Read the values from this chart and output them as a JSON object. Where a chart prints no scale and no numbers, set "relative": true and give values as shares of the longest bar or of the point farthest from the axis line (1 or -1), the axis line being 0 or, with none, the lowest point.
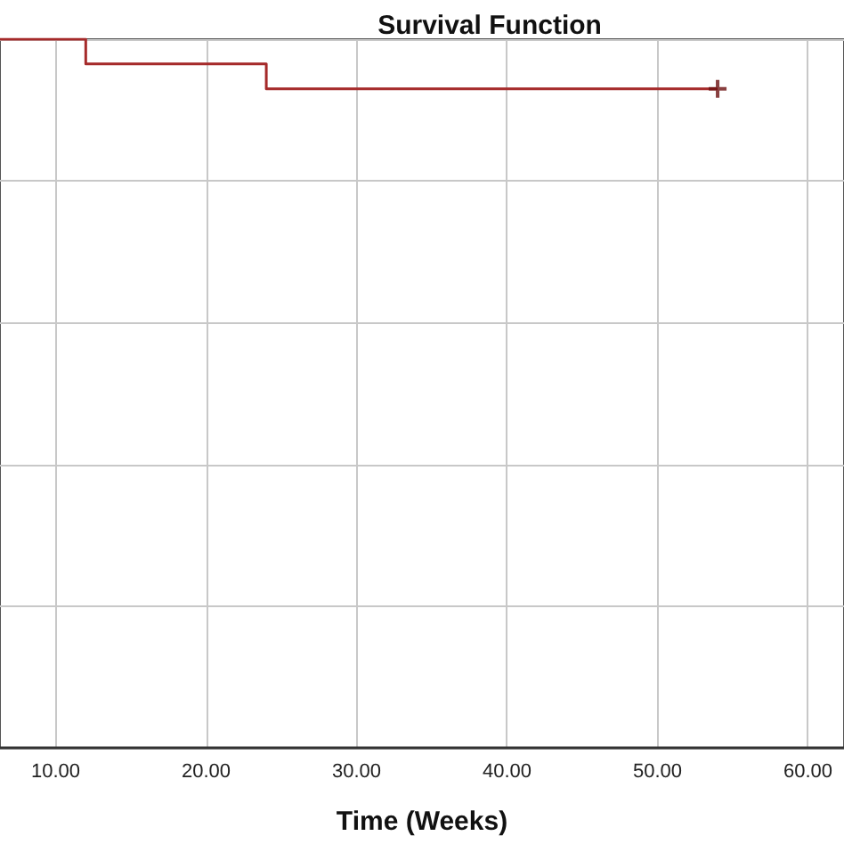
{
  "chart_data": {
    "type": "step",
    "title": "Survival Function",
    "xlabel": "Time (Weeks)",
    "relative": true,
    "grid": true,
    "xlim": [
      6.3,
      62.4
    ],
    "xticks": [
      {
        "value": 10,
        "label": "10.00"
      },
      {
        "value": 20,
        "label": "20.00"
      },
      {
        "value": 30,
        "label": "30.00"
      },
      {
        "value": 40,
        "label": "40.00"
      },
      {
        "value": 50,
        "label": "50.00"
      },
      {
        "value": 60,
        "label": "60.00"
      }
    ],
    "series": [
      {
        "color": "#a52a2a",
        "marker": "none",
        "x": [
          6.3,
          12,
          24,
          54
        ],
        "values": [
          1,
          0.965,
          0.93,
          0.93
        ]
      },
      {
        "type": "scatter",
        "color": "#6b1010",
        "marker": "cross",
        "x": [
          54
        ],
        "values": [
          0.93
        ]
      }
    ]
  }
}
